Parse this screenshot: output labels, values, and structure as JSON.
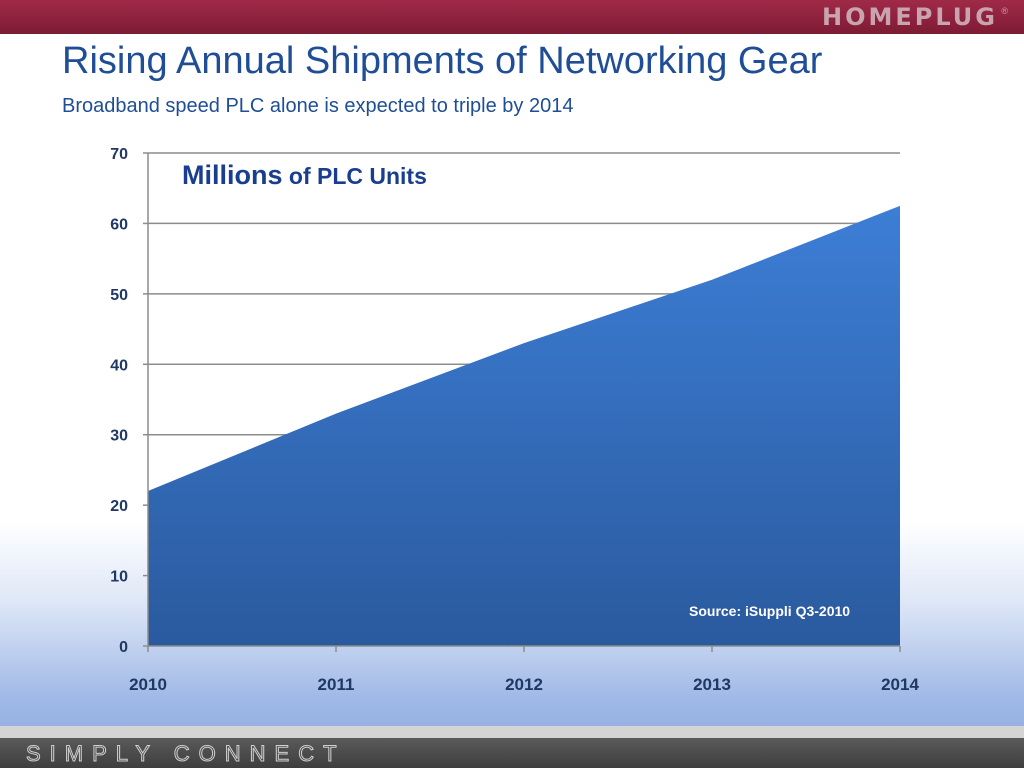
{
  "header": {
    "brand": "HOMEPLUG",
    "brand_mark": "®"
  },
  "slide": {
    "title": "Rising Annual Shipments of Networking Gear",
    "subtitle": "Broadband speed PLC alone is expected to triple by 2014"
  },
  "chart_data": {
    "type": "area",
    "annotation_big": "Millions",
    "annotation_small": " of PLC Units",
    "source_note": "Source:  iSuppli Q3-2010",
    "categories": [
      "2010",
      "2011",
      "2012",
      "2013",
      "2014"
    ],
    "values": [
      22,
      33,
      43,
      52,
      62.5
    ],
    "ylim": [
      0,
      70
    ],
    "yticks": [
      0,
      10,
      20,
      30,
      40,
      50,
      60,
      70
    ],
    "grid": true,
    "colors": {
      "fill_top": "#3d7ed6",
      "fill_bottom": "#2a5a9e",
      "grid": "#8c8c8c"
    }
  },
  "footer": {
    "tagline": "SIMPLY CONNECT"
  }
}
